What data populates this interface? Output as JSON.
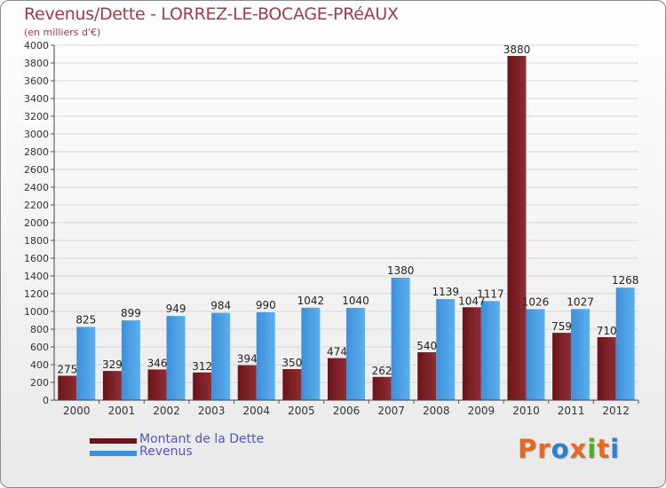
{
  "title": "Revenus/Dette - LORREZ-LE-BOCAGE-PRéAUX",
  "subtitle": "(en milliers d'€)",
  "legend": {
    "dette": "Montant de la Dette",
    "revenus": "Revenus"
  },
  "logo": {
    "letters": [
      "P",
      "r",
      "o",
      "x",
      "i",
      "t",
      "i"
    ]
  },
  "colors": {
    "dette": "#6b1318",
    "dette_light": "#8e2e34",
    "revenus": "#3d8fd9",
    "revenus_light": "#5cb0ee",
    "title": "#a23c46",
    "legend_text": "#5157c9",
    "logo": [
      "#e36a24",
      "#e36a24",
      "#2d7fd1",
      "#e36a24",
      "#4caf2a",
      "#e36a24",
      "#2d7fd1"
    ]
  },
  "chart_data": {
    "type": "bar",
    "categories": [
      "2000",
      "2001",
      "2002",
      "2003",
      "2004",
      "2005",
      "2006",
      "2007",
      "2008",
      "2009",
      "2010",
      "2011",
      "2012"
    ],
    "series": [
      {
        "name": "Montant de la Dette",
        "values": [
          275,
          329,
          346,
          312,
          394,
          350,
          474,
          262,
          540,
          1047,
          3880,
          759,
          710
        ]
      },
      {
        "name": "Revenus",
        "values": [
          825,
          899,
          949,
          984,
          990,
          1042,
          1040,
          1380,
          1139,
          1117,
          1026,
          1027,
          1268
        ]
      }
    ],
    "ylim": [
      0,
      4000
    ],
    "yticks": [
      0,
      200,
      400,
      600,
      800,
      1000,
      1200,
      1400,
      1600,
      1800,
      2000,
      2200,
      2400,
      2600,
      2800,
      3000,
      3200,
      3400,
      3600,
      3800,
      4000
    ],
    "title": "Revenus/Dette - LORREZ-LE-BOCAGE-PRéAUX",
    "ylabel": "(en milliers d'€)",
    "legend_position": "bottom-left"
  }
}
